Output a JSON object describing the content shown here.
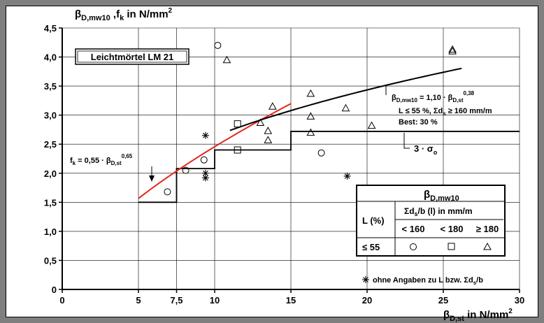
{
  "chart_data": {
    "type": "scatter",
    "title": "",
    "ylabel": {
      "beta": "β",
      "sub1": "D,mw10",
      "sep": " ,f",
      "sub2": "k",
      "unit": " in N/mm",
      "sup": "2"
    },
    "xlabel": {
      "beta": "β",
      "sub": "D,st",
      "unit": " in N/mm",
      "sup": "2"
    },
    "xlim": [
      0,
      30
    ],
    "ylim": [
      0,
      4.5
    ],
    "x_ticks": [
      0,
      5,
      7.5,
      10,
      15,
      20,
      25,
      30
    ],
    "x_tick_labels": [
      "0",
      "5",
      "7,5",
      "10",
      "15",
      "20",
      "25",
      "30"
    ],
    "y_ticks": [
      0,
      0.5,
      1.0,
      1.5,
      2.0,
      2.5,
      3.0,
      3.5,
      4.0,
      4.5
    ],
    "y_tick_labels": [
      "0",
      "0,5",
      "1,0",
      "1,5",
      "2,0",
      "2,5",
      "3,0",
      "3,5",
      "4,0",
      "4,5"
    ],
    "x_gridlines": [
      5,
      7.5,
      10,
      15,
      20,
      25,
      30
    ],
    "y_gridlines": [
      0.5,
      1.0,
      1.5,
      2.0,
      2.5,
      3.0,
      3.5,
      4.0,
      4.5
    ],
    "material_box": "Leichtmörtel LM 21",
    "series": [
      {
        "marker": "circle",
        "points": [
          [
            6.9,
            1.68
          ],
          [
            8.1,
            2.05
          ],
          [
            9.3,
            2.23
          ],
          [
            10.2,
            4.2
          ],
          [
            17.0,
            2.35
          ]
        ]
      },
      {
        "marker": "square",
        "points": [
          [
            11.5,
            2.4
          ],
          [
            11.5,
            2.85
          ]
        ]
      },
      {
        "marker": "triangle",
        "points": [
          [
            10.8,
            3.95
          ],
          [
            13.0,
            2.87
          ],
          [
            13.5,
            2.57
          ],
          [
            13.5,
            2.73
          ],
          [
            13.8,
            3.15
          ],
          [
            16.3,
            3.37
          ],
          [
            16.3,
            2.98
          ],
          [
            16.3,
            2.7
          ],
          [
            18.6,
            3.12
          ],
          [
            20.3,
            2.82
          ],
          [
            25.6,
            4.1
          ],
          [
            25.6,
            4.13
          ]
        ]
      },
      {
        "marker": "star",
        "points": [
          [
            9.4,
            2.65
          ],
          [
            9.4,
            2.0
          ],
          [
            9.4,
            1.92
          ],
          [
            18.7,
            1.95
          ]
        ]
      }
    ],
    "curves": [
      {
        "name": "fk",
        "color": "#e2261b",
        "coef": 0.55,
        "exp": 0.65,
        "x_range": [
          5,
          15
        ]
      },
      {
        "name": "beta",
        "color": "#000000",
        "coef": 1.1,
        "exp": 0.38,
        "x_range": [
          11,
          26.2
        ]
      }
    ],
    "step_line": [
      [
        5,
        1.5
      ],
      [
        7.5,
        1.5
      ],
      [
        7.5,
        2.08
      ],
      [
        10,
        2.08
      ],
      [
        10,
        2.4
      ],
      [
        15,
        2.4
      ],
      [
        15,
        2.72
      ],
      [
        30,
        2.72
      ]
    ],
    "annotations": {
      "fk": {
        "prefix": "f",
        "sub_k": "k",
        "mid": " = 0,55 · β",
        "sub": "D,st",
        "sup": "0,65"
      },
      "beta": {
        "beta": "β",
        "sub1": "D,mw10",
        "mid": " = 1,10 · β",
        "sub2": "D,st",
        "sup": "0,38"
      },
      "cond": {
        "text1": "L ≤  55 %, Σd",
        "sub": "s",
        "text2": " ≥  160 mm/m"
      },
      "best": "Best: 30 %",
      "sigma": {
        "text": "3 · σ",
        "sub": "o"
      },
      "footnote": {
        "text": "ohne Angaben zu L bzw. Σd",
        "sub": "s",
        "tail": "/b"
      }
    },
    "legend": {
      "title_beta": "β",
      "title_sub": "D,mw10",
      "row_label": "L (%)",
      "sum_text": "Σd",
      "sum_sub": "s",
      "sum_tail": "/b (l) in mm/m",
      "columns": [
        "< 160",
        "< 180",
        "≥ 180"
      ],
      "row": "≤ 55",
      "symbols": [
        "circle",
        "square",
        "triangle"
      ],
      "position": "lower-right"
    }
  }
}
